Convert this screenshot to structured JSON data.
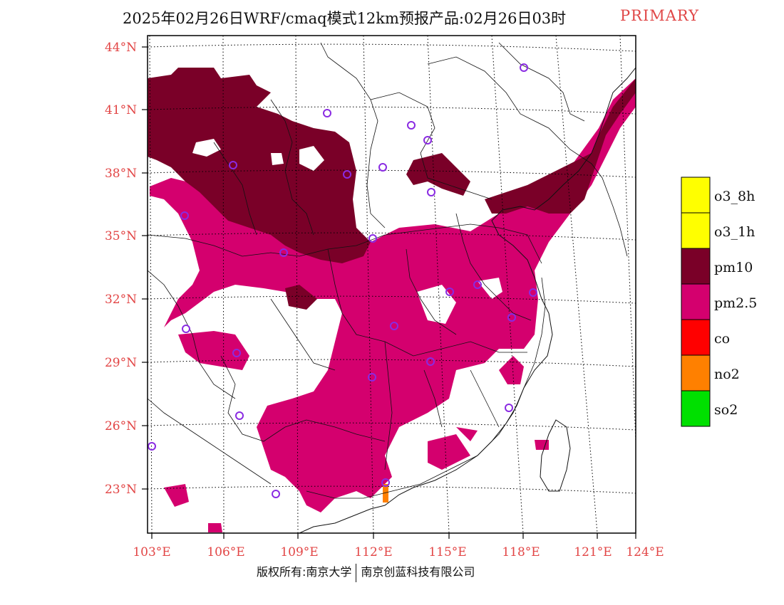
{
  "title": {
    "main": "2025年02月26日WRF/cmaq模式12km预报产品:02月26日03时",
    "tag": "PRIMARY"
  },
  "map": {
    "lat_labels": [
      "44°N",
      "41°N",
      "38°N",
      "35°N",
      "32°N",
      "29°N",
      "26°N",
      "23°N"
    ],
    "lon_labels": [
      "103°E",
      "106°E",
      "109°E",
      "112°E",
      "115°E",
      "118°E",
      "121°E",
      "124°E"
    ]
  },
  "legend": {
    "items": [
      {
        "label": "o3_8h",
        "color": "#ffff00"
      },
      {
        "label": "o3_1h",
        "color": "#ffff00"
      },
      {
        "label": "pm10",
        "color": "#7a0028"
      },
      {
        "label": "pm2.5",
        "color": "#d4006e"
      },
      {
        "label": "co",
        "color": "#ff0000"
      },
      {
        "label": "no2",
        "color": "#ff8000"
      },
      {
        "label": "so2",
        "color": "#00e000"
      }
    ]
  },
  "colors": {
    "pm10": "#7a0028",
    "pm25": "#d4006e",
    "no2": "#ff8000",
    "station": "#8a2be2",
    "label": "#e24545"
  },
  "footer": {
    "left": "版权所有:南京大学",
    "right": "南京创蓝科技有限公司"
  }
}
